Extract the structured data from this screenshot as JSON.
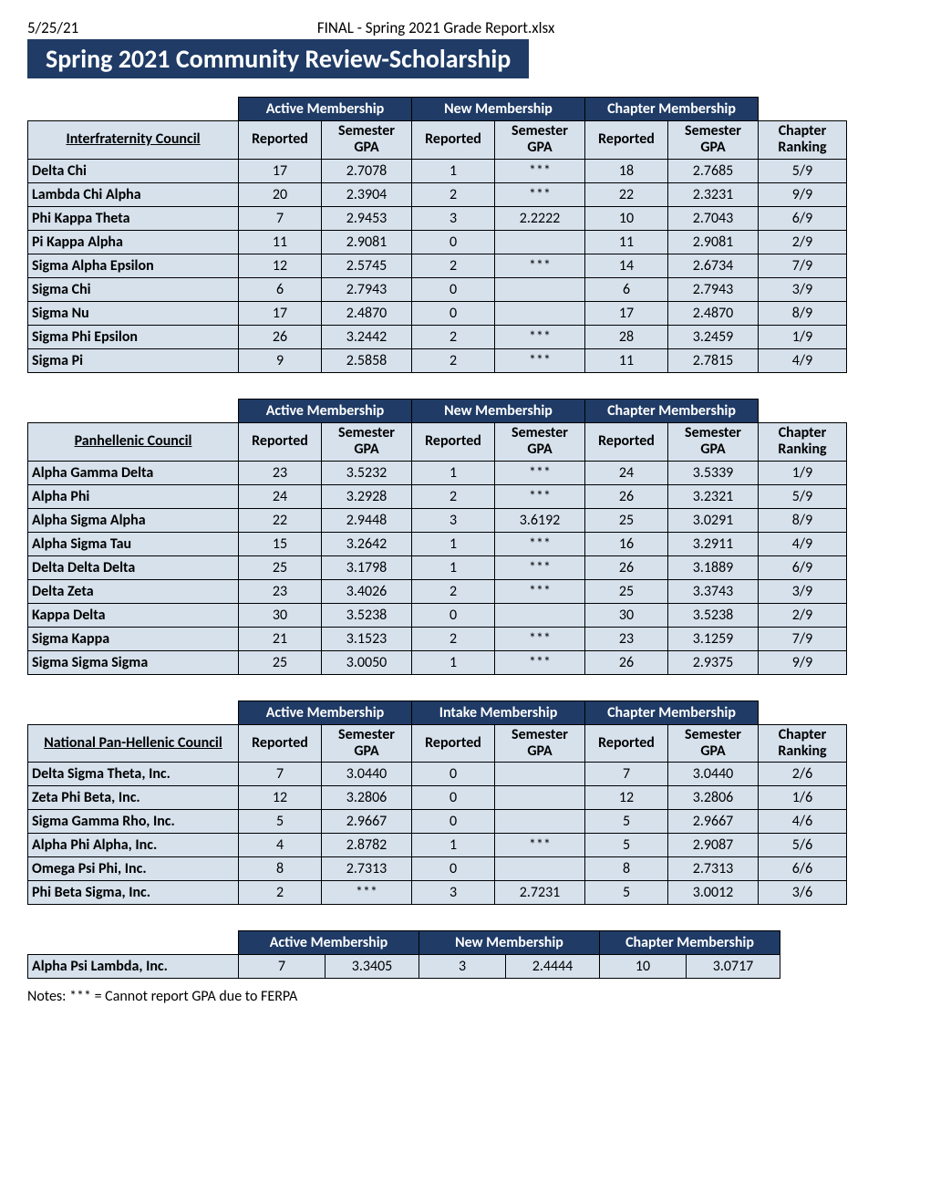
{
  "header": {
    "date": "5/25/21",
    "filename": "FINAL - Spring 2021 Grade Report.xlsx",
    "title": "Spring 2021 Community Review-Scholarship"
  },
  "labels": {
    "active": "Active Membership",
    "new": "New Membership",
    "intake": "Intake Membership",
    "chapter": "Chapter Membership",
    "reported": "Reported",
    "semgpa_l1": "Semester",
    "semgpa_l2": "GPA",
    "rank_l1": "Chapter",
    "rank_l2": "Ranking"
  },
  "tables": {
    "ifc": {
      "council": "Interfraternity Council",
      "midLabelKey": "new",
      "rows": [
        {
          "name": "Delta Chi",
          "ar": "17",
          "ag": "2.7078",
          "nr": "1",
          "ng": "***",
          "cr": "18",
          "cg": "2.7685",
          "rank": "5/9"
        },
        {
          "name": "Lambda Chi Alpha",
          "ar": "20",
          "ag": "2.3904",
          "nr": "2",
          "ng": "***",
          "cr": "22",
          "cg": "2.3231",
          "rank": "9/9"
        },
        {
          "name": "Phi Kappa Theta",
          "ar": "7",
          "ag": "2.9453",
          "nr": "3",
          "ng": "2.2222",
          "cr": "10",
          "cg": "2.7043",
          "rank": "6/9"
        },
        {
          "name": "Pi Kappa Alpha",
          "ar": "11",
          "ag": "2.9081",
          "nr": "0",
          "ng": "",
          "cr": "11",
          "cg": "2.9081",
          "rank": "2/9"
        },
        {
          "name": "Sigma Alpha Epsilon",
          "ar": "12",
          "ag": "2.5745",
          "nr": "2",
          "ng": "***",
          "cr": "14",
          "cg": "2.6734",
          "rank": "7/9"
        },
        {
          "name": "Sigma Chi",
          "ar": "6",
          "ag": "2.7943",
          "nr": "0",
          "ng": "",
          "cr": "6",
          "cg": "2.7943",
          "rank": "3/9"
        },
        {
          "name": "Sigma Nu",
          "ar": "17",
          "ag": "2.4870",
          "nr": "0",
          "ng": "",
          "cr": "17",
          "cg": "2.4870",
          "rank": "8/9"
        },
        {
          "name": "Sigma Phi Epsilon",
          "ar": "26",
          "ag": "3.2442",
          "nr": "2",
          "ng": "***",
          "cr": "28",
          "cg": "3.2459",
          "rank": "1/9"
        },
        {
          "name": "Sigma Pi",
          "ar": "9",
          "ag": "2.5858",
          "nr": "2",
          "ng": "***",
          "cr": "11",
          "cg": "2.7815",
          "rank": "4/9"
        }
      ]
    },
    "phc": {
      "council": "Panhellenic Council",
      "midLabelKey": "new",
      "rows": [
        {
          "name": "Alpha Gamma Delta",
          "ar": "23",
          "ag": "3.5232",
          "nr": "1",
          "ng": "***",
          "cr": "24",
          "cg": "3.5339",
          "rank": "1/9"
        },
        {
          "name": "Alpha Phi",
          "ar": "24",
          "ag": "3.2928",
          "nr": "2",
          "ng": "***",
          "cr": "26",
          "cg": "3.2321",
          "rank": "5/9"
        },
        {
          "name": "Alpha Sigma Alpha",
          "ar": "22",
          "ag": "2.9448",
          "nr": "3",
          "ng": "3.6192",
          "cr": "25",
          "cg": "3.0291",
          "rank": "8/9"
        },
        {
          "name": "Alpha Sigma Tau",
          "ar": "15",
          "ag": "3.2642",
          "nr": "1",
          "ng": "***",
          "cr": "16",
          "cg": "3.2911",
          "rank": "4/9"
        },
        {
          "name": "Delta Delta Delta",
          "ar": "25",
          "ag": "3.1798",
          "nr": "1",
          "ng": "***",
          "cr": "26",
          "cg": "3.1889",
          "rank": "6/9"
        },
        {
          "name": "Delta Zeta",
          "ar": "23",
          "ag": "3.4026",
          "nr": "2",
          "ng": "***",
          "cr": "25",
          "cg": "3.3743",
          "rank": "3/9"
        },
        {
          "name": "Kappa Delta",
          "ar": "30",
          "ag": "3.5238",
          "nr": "0",
          "ng": "",
          "cr": "30",
          "cg": "3.5238",
          "rank": "2/9"
        },
        {
          "name": "Sigma Kappa",
          "ar": "21",
          "ag": "3.1523",
          "nr": "2",
          "ng": "***",
          "cr": "23",
          "cg": "3.1259",
          "rank": "7/9"
        },
        {
          "name": "Sigma Sigma Sigma",
          "ar": "25",
          "ag": "3.0050",
          "nr": "1",
          "ng": "***",
          "cr": "26",
          "cg": "2.9375",
          "rank": "9/9"
        }
      ]
    },
    "nphc": {
      "council": "National Pan-Hellenic Council",
      "midLabelKey": "intake",
      "rows": [
        {
          "name": "Delta Sigma Theta, Inc.",
          "ar": "7",
          "ag": "3.0440",
          "nr": "0",
          "ng": "",
          "cr": "7",
          "cg": "3.0440",
          "rank": "2/6"
        },
        {
          "name": "Zeta Phi Beta, Inc.",
          "ar": "12",
          "ag": "3.2806",
          "nr": "0",
          "ng": "",
          "cr": "12",
          "cg": "3.2806",
          "rank": "1/6"
        },
        {
          "name": "Sigma Gamma Rho, Inc.",
          "ar": "5",
          "ag": "2.9667",
          "nr": "0",
          "ng": "",
          "cr": "5",
          "cg": "2.9667",
          "rank": "4/6"
        },
        {
          "name": "Alpha Phi Alpha, Inc.",
          "ar": "4",
          "ag": "2.8782",
          "nr": "1",
          "ng": "***",
          "cr": "5",
          "cg": "2.9087",
          "rank": "5/6"
        },
        {
          "name": "Omega Psi Phi, Inc.",
          "ar": "8",
          "ag": "2.7313",
          "nr": "0",
          "ng": "",
          "cr": "8",
          "cg": "2.7313",
          "rank": "6/6"
        },
        {
          "name": "Phi Beta Sigma, Inc.",
          "ar": "2",
          "ag": "***",
          "nr": "3",
          "ng": "2.7231",
          "cr": "5",
          "cg": "3.0012",
          "rank": "3/6"
        }
      ]
    },
    "extra": {
      "name": "Alpha Psi Lambda, Inc.",
      "ar": "7",
      "ag": "3.3405",
      "nr": "3",
      "ng": "2.4444",
      "cr": "10",
      "cg": "3.0717"
    }
  },
  "notes": "Notes: *** = Cannot report GPA due to FERPA",
  "style": {
    "header_bg": "#1f3b66",
    "cell_bg": "#d6e1ec",
    "text_color": "#000000"
  }
}
